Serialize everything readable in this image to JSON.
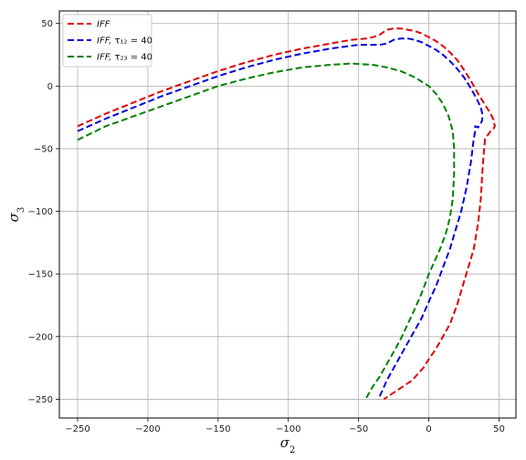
{
  "chart_data": {
    "type": "line",
    "title": "",
    "xlabel": "σ2",
    "ylabel": "σ3",
    "xlim": [
      -263,
      62
    ],
    "ylim": [
      -265,
      60
    ],
    "xticks": [
      -250,
      -200,
      -150,
      -100,
      -50,
      0,
      50
    ],
    "yticks": [
      50,
      0,
      -50,
      -100,
      -150,
      -200,
      -250
    ],
    "grid": true,
    "line_style": "dashed",
    "legend_position": "top-left",
    "series": [
      {
        "name": "IFF",
        "color": "#e00000",
        "x": [
          -250,
          -230,
          -210,
          -190,
          -170,
          -150,
          -130,
          -110,
          -90,
          -70,
          -55,
          -45,
          -40,
          -35,
          -30,
          -25,
          -20,
          -15,
          -10,
          -5,
          0,
          5,
          10,
          15,
          20,
          25,
          30,
          35,
          40,
          44,
          46,
          47,
          46,
          44,
          42,
          40,
          39,
          38,
          37,
          35,
          32,
          28,
          24,
          20,
          15,
          10,
          5,
          0,
          -4,
          -8,
          -12,
          -16,
          -20,
          -24,
          -28,
          -32
        ],
        "y": [
          -32,
          -22,
          -13,
          -4,
          4,
          12,
          19,
          25,
          30,
          34,
          37,
          38,
          39,
          41,
          45,
          46,
          46,
          45,
          44,
          42,
          39,
          36,
          32,
          27,
          21,
          13,
          4,
          -6,
          -15,
          -22,
          -27,
          -32,
          -34,
          -36,
          -39,
          -42,
          -55,
          -70,
          -90,
          -110,
          -130,
          -145,
          -160,
          -175,
          -190,
          -200,
          -210,
          -218,
          -225,
          -230,
          -235,
          -238,
          -241,
          -244,
          -247,
          -250
        ]
      },
      {
        "name": "IFF, τ12 = 40",
        "color": "#0000e0",
        "x": [
          -250,
          -230,
          -210,
          -190,
          -170,
          -150,
          -130,
          -110,
          -90,
          -70,
          -50,
          -35,
          -30,
          -25,
          -20,
          -15,
          -10,
          -5,
          0,
          5,
          10,
          15,
          20,
          25,
          30,
          34,
          37,
          38,
          38,
          37,
          35,
          33,
          33,
          32,
          30,
          27,
          23,
          19,
          15,
          10,
          5,
          0,
          -5,
          -10,
          -15,
          -20,
          -25,
          -30,
          -33,
          -36
        ],
        "y": [
          -36,
          -26,
          -17,
          -8,
          0,
          8,
          15,
          21,
          26,
          30,
          33,
          33,
          34,
          37,
          38,
          38,
          37,
          35,
          32,
          29,
          25,
          20,
          14,
          7,
          -2,
          -10,
          -17,
          -22,
          -27,
          -30,
          -33,
          -32,
          -36,
          -42,
          -60,
          -80,
          -100,
          -115,
          -130,
          -145,
          -160,
          -172,
          -185,
          -195,
          -205,
          -215,
          -225,
          -235,
          -243,
          -250
        ]
      },
      {
        "name": "IFF, τ23 = 40",
        "color": "#008000",
        "x": [
          -250,
          -230,
          -210,
          -190,
          -170,
          -150,
          -130,
          -110,
          -90,
          -70,
          -55,
          -40,
          -30,
          -20,
          -10,
          0,
          5,
          10,
          14,
          17,
          18,
          18,
          17,
          15,
          12,
          8,
          4,
          0,
          -5,
          -10,
          -15,
          -20,
          -25,
          -30,
          -35,
          -40,
          -45
        ],
        "y": [
          -43,
          -32,
          -24,
          -16,
          -8,
          0,
          6,
          11,
          15,
          17,
          18,
          17,
          15,
          12,
          7,
          0,
          -6,
          -14,
          -24,
          -36,
          -50,
          -70,
          -90,
          -105,
          -118,
          -130,
          -140,
          -150,
          -165,
          -178,
          -190,
          -202,
          -212,
          -222,
          -232,
          -240,
          -250
        ]
      }
    ]
  },
  "legend": {
    "items": [
      {
        "ital": "IFF",
        "rest": ""
      },
      {
        "ital": "IFF,",
        "rest": " τ₁₂ = 40"
      },
      {
        "ital": "IFF,",
        "rest": " τ₂₃ = 40"
      }
    ]
  },
  "colors": {
    "grid": "#b0b0b0",
    "frame": "#000000",
    "background": "#ffffff"
  }
}
